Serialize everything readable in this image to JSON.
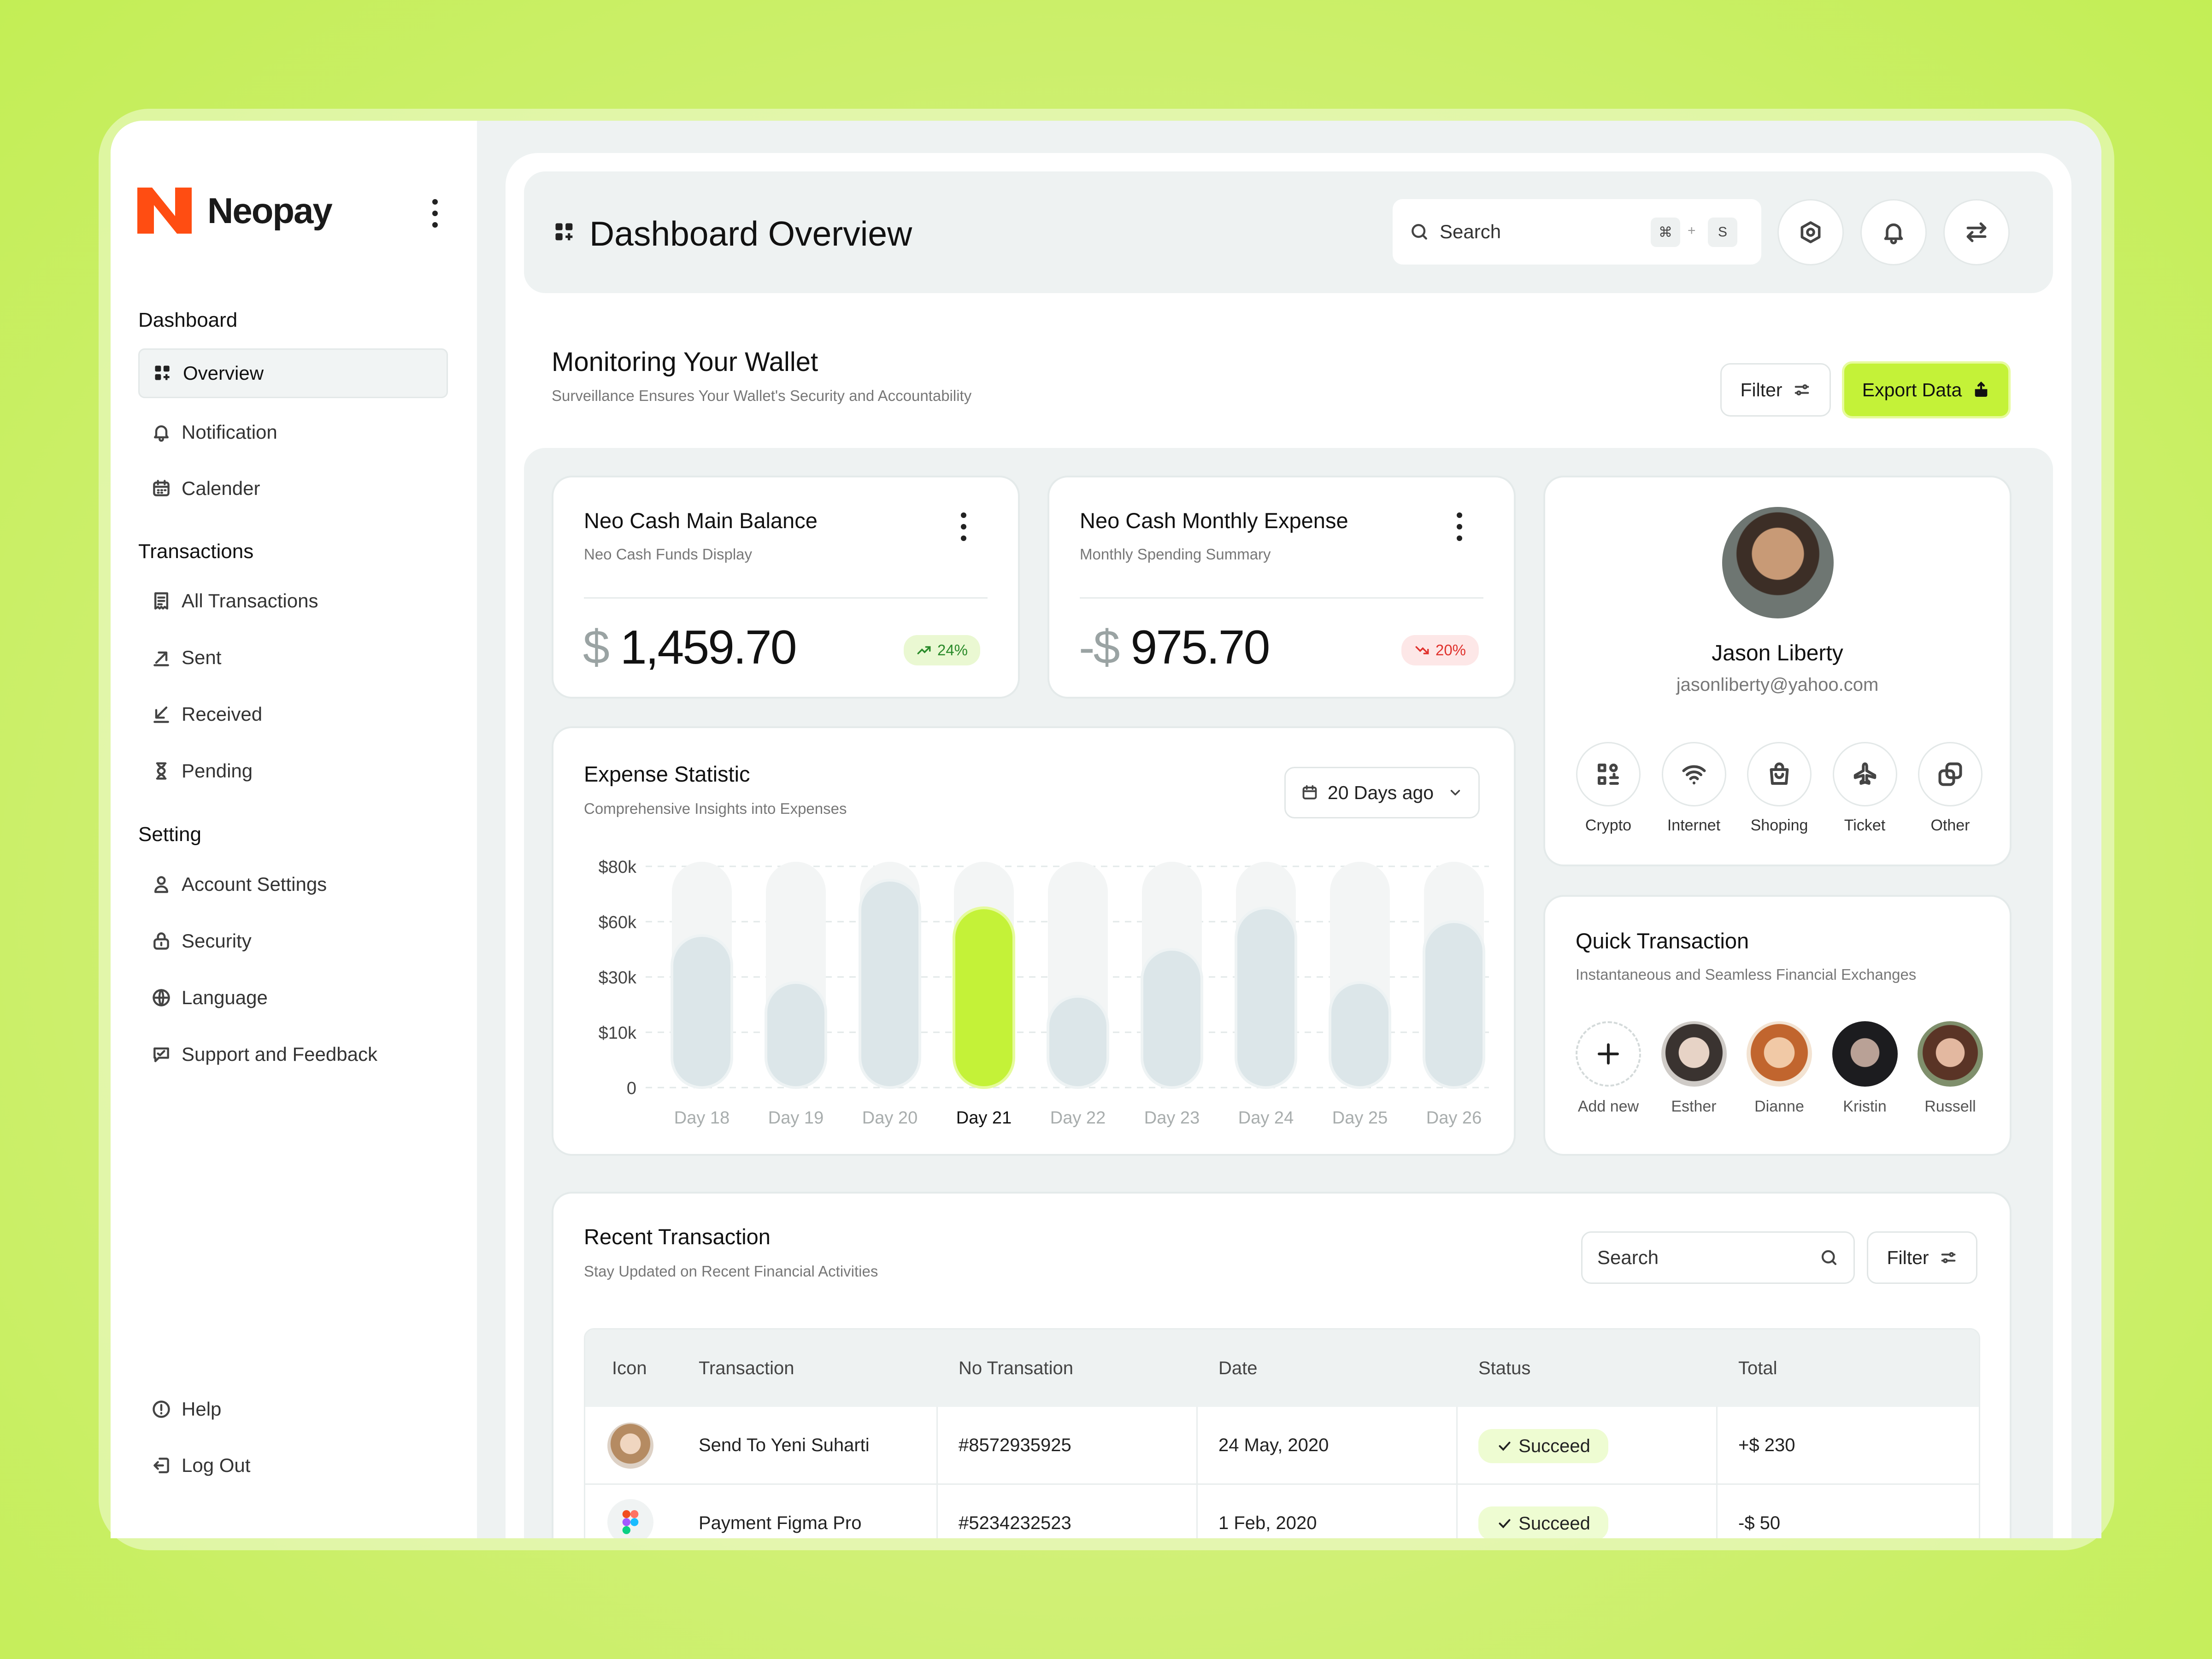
{
  "brand": {
    "name": "Neopay",
    "color": "#ff4d12"
  },
  "sidebar": {
    "sections": [
      "Dashboard",
      "Transactions",
      "Setting"
    ],
    "items": [
      {
        "label": "Overview",
        "icon": "grid-icon"
      },
      {
        "label": "Notification",
        "icon": "bell-icon"
      },
      {
        "label": "Calender",
        "icon": "calendar-icon"
      },
      {
        "label": "All Transactions",
        "icon": "receipt-icon"
      },
      {
        "label": "Sent",
        "icon": "arrow-up-right-icon"
      },
      {
        "label": "Received",
        "icon": "arrow-down-left-icon"
      },
      {
        "label": "Pending",
        "icon": "hourglass-icon"
      },
      {
        "label": "Account Settings",
        "icon": "user-icon"
      },
      {
        "label": "Security",
        "icon": "lock-icon"
      },
      {
        "label": "Language",
        "icon": "globe-icon"
      },
      {
        "label": "Support and Feedback",
        "icon": "chat-icon"
      }
    ],
    "bottom": [
      {
        "label": "Help",
        "icon": "info-icon"
      },
      {
        "label": "Log Out",
        "icon": "logout-icon"
      }
    ]
  },
  "header": {
    "title": "Dashboard Overview",
    "search_placeholder": "Search",
    "kbd1": "⌘",
    "kbd_plus": "+",
    "kbd2": "S"
  },
  "wallet": {
    "title": "Monitoring Your Wallet",
    "subtitle": "Surveillance Ensures Your Wallet's Security and Accountability",
    "filter": "Filter",
    "export": "Export Data"
  },
  "balance": {
    "title": "Neo Cash Main Balance",
    "subtitle": "Neo Cash Funds Display",
    "currency": "$",
    "amount": "1,459.70",
    "change": "24%"
  },
  "expense": {
    "title": "Neo Cash Monthly Expense",
    "subtitle": "Monthly Spending Summary",
    "currency": "-$",
    "amount": "975.70",
    "change": "20%"
  },
  "profile": {
    "name": "Jason Liberty",
    "email": "jasonliberty@yahoo.com",
    "categories": [
      "Crypto",
      "Internet",
      "Shoping",
      "Ticket",
      "Other"
    ]
  },
  "quick": {
    "title": "Quick Transaction",
    "subtitle": "Instantaneous and Seamless Financial Exchanges",
    "add_label": "Add new",
    "contacts": [
      "Esther",
      "Dianne",
      "Kristin",
      "Russell"
    ]
  },
  "chart_data": {
    "type": "bar",
    "title": "Expense Statistic",
    "subtitle": "Comprehensive Insights into Expenses",
    "range_label": "20 Days ago",
    "categories": [
      "Day 18",
      "Day 19",
      "Day 20",
      "Day 21",
      "Day 22",
      "Day 23",
      "Day 24",
      "Day 25",
      "Day 26"
    ],
    "values": [
      55,
      38,
      75,
      65,
      33,
      50,
      65,
      38,
      60
    ],
    "highlight_index": 3,
    "y_ticks": [
      "$80k",
      "$60k",
      "$30k",
      "$10k",
      "0"
    ],
    "ylim": [
      0,
      80
    ],
    "colors": {
      "bar": "#dce6e9",
      "highlight": "#c4f238",
      "track": "#f3f5f5"
    }
  },
  "recent": {
    "title": "Recent Transaction",
    "subtitle": "Stay Updated on Recent Financial Activities",
    "search_placeholder": "Search",
    "filter": "Filter",
    "columns": [
      "Icon",
      "Transaction",
      "No Transation",
      "Date",
      "Status",
      "Total"
    ],
    "rows": [
      {
        "transaction": "Send To Yeni Suharti",
        "no": "#8572935925",
        "date": "24 May, 2020",
        "status": "Succeed",
        "total": "+$ 230"
      },
      {
        "transaction": "Payment Figma Pro",
        "no": "#5234232523",
        "date": "1 Feb, 2020",
        "status": "Succeed",
        "total": "-$ 50"
      }
    ]
  }
}
